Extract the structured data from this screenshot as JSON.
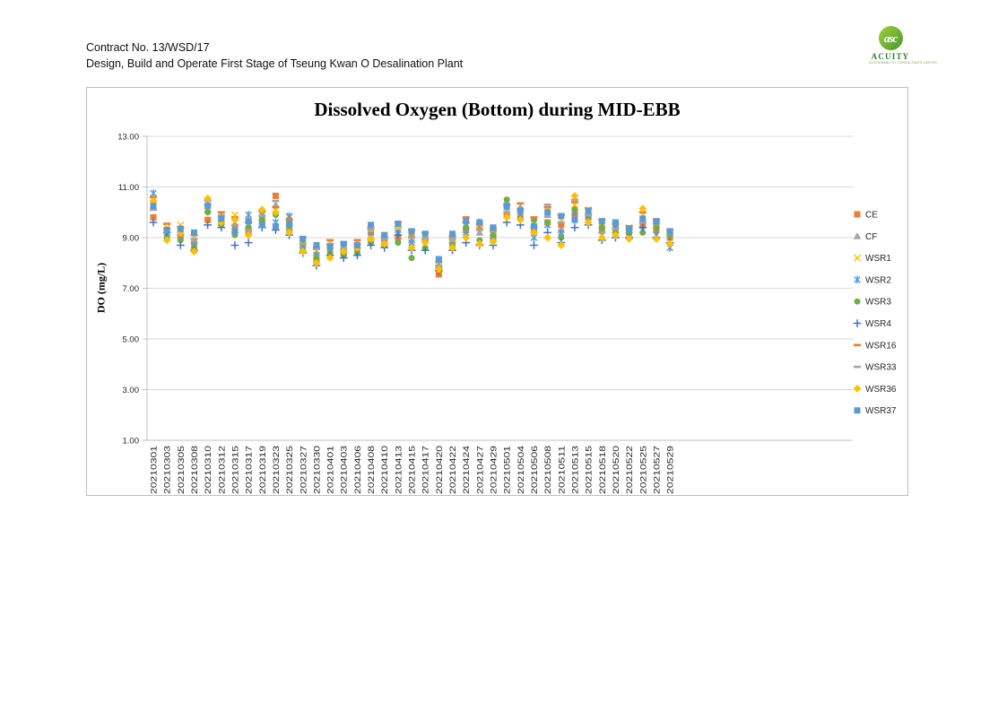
{
  "page": {
    "header": {
      "line1": "Contract No. 13/WSD/17",
      "line2": "Design, Build and Operate First Stage of Tseung Kwan O Desalination Plant"
    },
    "logo": {
      "monogram": "asc",
      "name": "ACUITY",
      "caption": "SUSTAINABILITY CONSULTANTS LIMITED"
    }
  },
  "chart_data": {
    "type": "scatter",
    "title": "Dissolved Oxygen (Bottom) during MID-EBB",
    "xlabel": "",
    "ylabel": "DO (mg/L)",
    "ylim": [
      1,
      13
    ],
    "yticks": [
      13,
      11,
      9,
      7,
      5,
      3,
      1
    ],
    "ytick_labels": [
      "13.00",
      "11.00",
      "9.00",
      "7.00",
      "5.00",
      "3.00",
      "1.00"
    ],
    "grid": true,
    "legend_position": "right",
    "gridline_color": "#d9d9d9",
    "axis_color": "#bfbfbf",
    "categories": [
      "20210301",
      "20210303",
      "20210305",
      "20210308",
      "20210310",
      "20210312",
      "20210315",
      "20210317",
      "20210319",
      "20210323",
      "20210325",
      "20210327",
      "20210330",
      "20210401",
      "20210403",
      "20210406",
      "20210408",
      "20210410",
      "20210413",
      "20210415",
      "20210417",
      "20210420",
      "20210422",
      "20210424",
      "20210427",
      "20210429",
      "20210501",
      "20210504",
      "20210506",
      "20210508",
      "20210511",
      "20210513",
      "20210515",
      "20210518",
      "20210520",
      "20210522",
      "20210525",
      "20210527",
      "20210529"
    ],
    "series": [
      {
        "name": "CE",
        "marker": "square",
        "color": "#ED7D31",
        "values": [
          9.8,
          9.3,
          9.0,
          8.8,
          9.7,
          9.6,
          9.4,
          9.2,
          9.6,
          10.65,
          9.5,
          8.8,
          8.1,
          8.6,
          8.4,
          8.6,
          9.2,
          8.9,
          9.0,
          9.1,
          8.9,
          7.55,
          8.8,
          9.3,
          9.4,
          9.0,
          9.9,
          9.8,
          9.3,
          9.6,
          9.5,
          9.9,
          9.8,
          9.3,
          9.4,
          9.2,
          9.5,
          9.3,
          9.0
        ]
      },
      {
        "name": "CF",
        "marker": "triangle",
        "color": "#A5A5A5",
        "values": [
          10.2,
          9.2,
          9.2,
          8.9,
          10.1,
          9.7,
          9.3,
          9.5,
          9.8,
          10.3,
          9.6,
          8.7,
          8.4,
          8.7,
          8.5,
          8.7,
          9.0,
          8.8,
          9.3,
          8.9,
          9.0,
          7.9,
          8.9,
          9.5,
          9.2,
          9.2,
          10.4,
          10.2,
          9.5,
          9.9,
          9.3,
          10.2,
          10.0,
          9.5,
          9.3,
          9.3,
          9.7,
          9.5,
          9.1
        ]
      },
      {
        "name": "WSR1",
        "marker": "x",
        "color": "#FFC000",
        "values": [
          10.5,
          9.4,
          9.5,
          9.0,
          10.2,
          9.9,
          9.9,
          9.7,
          10.0,
          10.1,
          9.8,
          8.9,
          8.5,
          8.8,
          8.7,
          8.8,
          9.3,
          9.1,
          9.5,
          9.2,
          9.1,
          8.0,
          9.0,
          9.7,
          9.5,
          9.3,
          10.1,
          10.0,
          9.6,
          10.1,
          9.7,
          10.3,
          10.1,
          9.6,
          9.6,
          9.4,
          9.9,
          9.6,
          9.2
        ]
      },
      {
        "name": "WSR2",
        "marker": "star",
        "color": "#5B9BD5",
        "values": [
          10.75,
          9.1,
          9.3,
          8.7,
          10.4,
          9.8,
          9.6,
          9.9,
          9.9,
          9.6,
          9.85,
          8.6,
          8.3,
          8.5,
          8.6,
          8.5,
          9.1,
          9.0,
          9.2,
          8.8,
          8.7,
          8.1,
          9.1,
          9.2,
          9.6,
          8.9,
          10.2,
          9.9,
          9.0,
          9.5,
          9.2,
          10.0,
          9.7,
          9.1,
          9.5,
          9.1,
          9.3,
          9.1,
          8.6
        ]
      },
      {
        "name": "WSR3",
        "marker": "circle",
        "color": "#70AD47",
        "values": [
          10.3,
          9.0,
          8.9,
          8.6,
          10.0,
          9.5,
          9.1,
          9.4,
          9.7,
          9.9,
          9.4,
          8.5,
          8.2,
          8.4,
          8.3,
          8.4,
          8.8,
          8.7,
          8.8,
          8.2,
          8.6,
          7.8,
          8.7,
          9.4,
          8.9,
          9.1,
          10.5,
          10.1,
          9.7,
          9.6,
          9.0,
          10.1,
          9.9,
          9.4,
          9.2,
          9.2,
          9.2,
          9.4,
          9.1
        ]
      },
      {
        "name": "WSR4",
        "marker": "plus",
        "color": "#4472C4",
        "values": [
          9.6,
          9.2,
          8.7,
          8.5,
          9.5,
          9.4,
          8.7,
          8.8,
          9.4,
          9.3,
          9.1,
          8.4,
          7.9,
          8.3,
          8.2,
          8.3,
          8.7,
          8.6,
          9.1,
          8.5,
          8.5,
          7.7,
          8.5,
          8.8,
          8.7,
          8.7,
          9.6,
          9.5,
          8.7,
          9.2,
          8.8,
          9.4,
          9.5,
          8.9,
          9.0,
          9.0,
          9.4,
          9.0,
          8.8
        ]
      },
      {
        "name": "WSR16",
        "marker": "dash",
        "color": "#ED7D31",
        "values": [
          10.6,
          9.55,
          9.4,
          9.1,
          10.3,
          10.0,
          9.8,
          9.6,
          10.05,
          10.2,
          9.7,
          9.0,
          8.6,
          8.9,
          8.8,
          8.9,
          9.4,
          9.05,
          9.6,
          9.3,
          9.2,
          8.05,
          9.05,
          9.8,
          9.55,
          9.35,
          10.3,
          10.35,
          9.8,
          10.2,
          9.9,
          10.4,
          10.15,
          9.7,
          9.55,
          9.45,
          10.0,
          9.7,
          9.3
        ]
      },
      {
        "name": "WSR33",
        "marker": "dash",
        "color": "#A5A5A5",
        "values": [
          10.1,
          9.35,
          9.1,
          8.95,
          10.45,
          9.85,
          9.5,
          9.3,
          9.85,
          10.45,
          9.3,
          8.75,
          8.55,
          8.75,
          8.55,
          8.75,
          9.35,
          8.95,
          9.4,
          9.0,
          8.95,
          7.9,
          8.95,
          9.6,
          9.3,
          9.25,
          10.0,
          10.15,
          9.4,
          10.3,
          9.6,
          10.5,
          9.9,
          9.2,
          9.35,
          9.35,
          9.6,
          9.55,
          9.15
        ]
      },
      {
        "name": "WSR36",
        "marker": "diamond",
        "color": "#FFC000",
        "values": [
          10.45,
          8.9,
          9.2,
          8.45,
          10.55,
          9.6,
          9.7,
          9.1,
          10.1,
          10.0,
          9.2,
          8.45,
          8.0,
          8.2,
          8.45,
          8.6,
          8.95,
          8.75,
          9.45,
          8.6,
          8.8,
          7.75,
          8.6,
          9.0,
          8.75,
          8.85,
          9.8,
          9.7,
          9.2,
          9.0,
          8.7,
          10.65,
          9.6,
          9.0,
          9.1,
          8.95,
          10.15,
          8.95,
          8.75
        ]
      },
      {
        "name": "WSR37",
        "marker": "square",
        "color": "#5B9BD5",
        "values": [
          10.25,
          9.3,
          9.35,
          9.2,
          10.25,
          9.75,
          9.25,
          9.65,
          9.5,
          9.45,
          9.55,
          8.95,
          8.7,
          8.65,
          8.75,
          8.7,
          9.5,
          9.1,
          9.55,
          9.25,
          9.15,
          8.15,
          9.15,
          9.65,
          9.6,
          9.4,
          10.25,
          10.05,
          9.45,
          10.0,
          9.85,
          9.7,
          10.05,
          9.65,
          9.6,
          9.35,
          9.75,
          9.65,
          9.25
        ]
      }
    ]
  }
}
